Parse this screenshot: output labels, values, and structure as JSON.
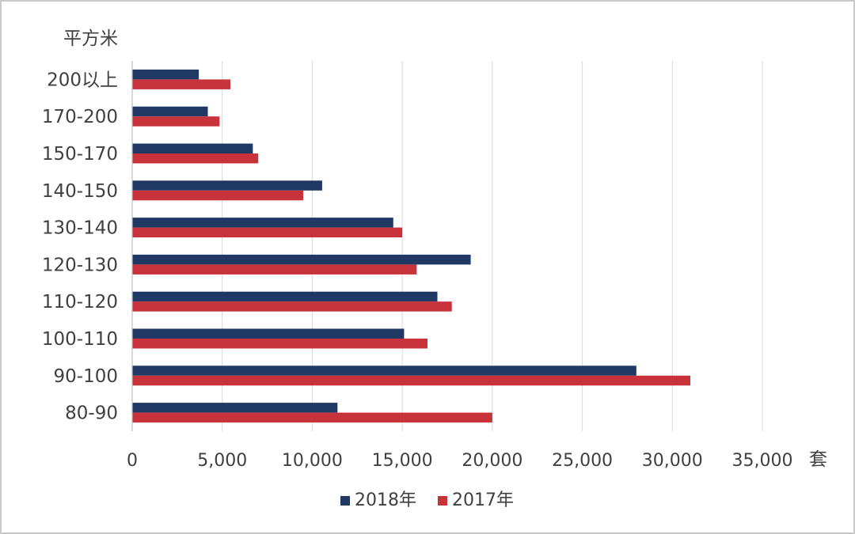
{
  "chart_data": {
    "type": "bar",
    "orientation": "horizontal",
    "y_unit_label": "平方米",
    "x_unit_label": "套",
    "categories": [
      "200以上",
      "170-200",
      "150-170",
      "140-150",
      "130-140",
      "120-130",
      "110-120",
      "100-110",
      "90-100",
      "80-90"
    ],
    "series": [
      {
        "name": "2018年",
        "color": "#203864",
        "values": [
          3700,
          4200,
          6700,
          10550,
          14500,
          18800,
          16950,
          15100,
          28000,
          11400
        ]
      },
      {
        "name": "2017年",
        "color": "#c8323a",
        "values": [
          5450,
          4850,
          7000,
          9500,
          15000,
          15800,
          17750,
          16400,
          31000,
          20000
        ]
      }
    ],
    "xlim": [
      0,
      35000
    ],
    "xticks": [
      0,
      5000,
      10000,
      15000,
      20000,
      25000,
      30000,
      35000
    ],
    "xtick_labels": [
      "0",
      "5,000",
      "10,000",
      "15,000",
      "20,000",
      "25,000",
      "30,000",
      "35,000"
    ],
    "grid": "vertical",
    "legend_position": "bottom"
  }
}
